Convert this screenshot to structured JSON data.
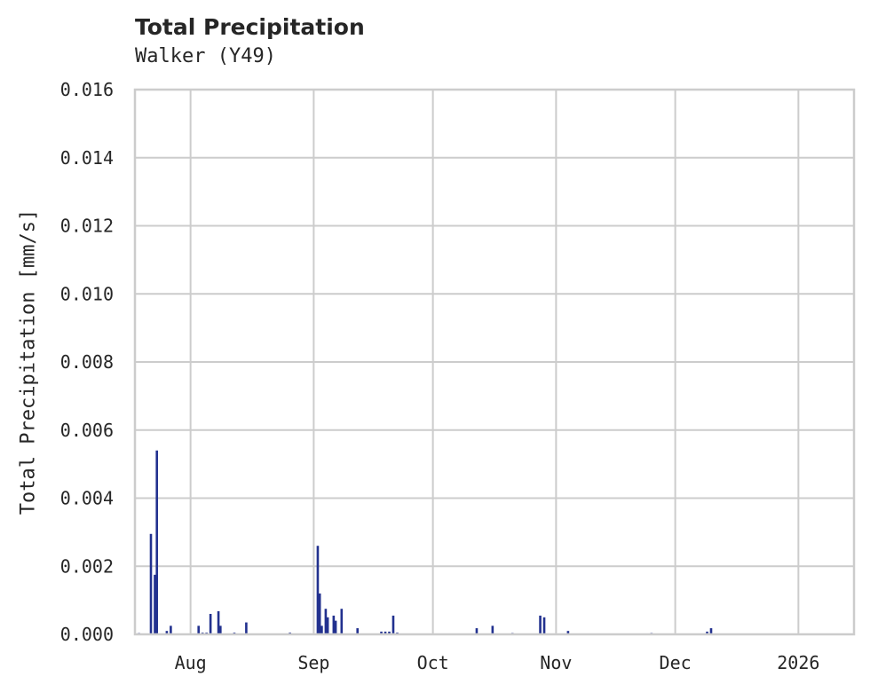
{
  "header": {
    "title": "Total Precipitation",
    "subtitle": "Walker (Y49)"
  },
  "axes": {
    "ylabel": "Total Precipitation [mm/s]",
    "yticks": [
      "0.000",
      "0.002",
      "0.004",
      "0.006",
      "0.008",
      "0.010",
      "0.012",
      "0.014",
      "0.016"
    ],
    "xticks": [
      "Aug",
      "Sep",
      "Oct",
      "Nov",
      "Dec",
      "2026"
    ]
  },
  "colors": {
    "bar": "#22318f",
    "grid": "#cccccc",
    "text": "#262626"
  },
  "chart_data": {
    "type": "bar",
    "title": "Total Precipitation",
    "subtitle": "Walker (Y49)",
    "xlabel": "",
    "ylabel": "Total Precipitation [mm/s]",
    "ylim": [
      0,
      0.016
    ],
    "xlim": [
      "2025-07-18",
      "2026-01-15"
    ],
    "grid": true,
    "legend": null,
    "x_tick_labels": [
      "Aug",
      "Sep",
      "Oct",
      "Nov",
      "Dec",
      "2026"
    ],
    "y_tick_labels": [
      "0.000",
      "0.002",
      "0.004",
      "0.006",
      "0.008",
      "0.010",
      "0.012",
      "0.014",
      "0.016"
    ],
    "series": [
      {
        "name": "Total Precipitation",
        "x": [
          "2025-07-19",
          "2025-07-22",
          "2025-07-23",
          "2025-07-23T12",
          "2025-07-26",
          "2025-07-27",
          "2025-08-03",
          "2025-08-04",
          "2025-08-05",
          "2025-08-06",
          "2025-08-08",
          "2025-08-08T12",
          "2025-08-12",
          "2025-08-15",
          "2025-08-26",
          "2025-09-02",
          "2025-09-02T12",
          "2025-09-03",
          "2025-09-04",
          "2025-09-04T12",
          "2025-09-06",
          "2025-09-06T12",
          "2025-09-08",
          "2025-09-12",
          "2025-09-18",
          "2025-09-19",
          "2025-09-20",
          "2025-09-21",
          "2025-09-22",
          "2025-10-12",
          "2025-10-16",
          "2025-10-21",
          "2025-10-28",
          "2025-10-29",
          "2025-11-04",
          "2025-11-25",
          "2025-12-09",
          "2025-12-10"
        ],
        "values": [
          3e-05,
          0.00295,
          0.00175,
          0.0054,
          0.0001,
          0.00025,
          0.00025,
          5e-05,
          5e-05,
          0.0006,
          0.00068,
          0.00025,
          5e-05,
          0.00035,
          5e-05,
          0.0026,
          0.0012,
          0.00025,
          0.00075,
          0.0005,
          0.00055,
          0.0004,
          0.00075,
          0.00018,
          8e-05,
          8e-05,
          8e-05,
          0.00055,
          5e-05,
          0.00018,
          0.00025,
          4e-05,
          0.00055,
          0.0005,
          0.0001,
          4e-05,
          8e-05,
          0.00018
        ]
      }
    ]
  }
}
